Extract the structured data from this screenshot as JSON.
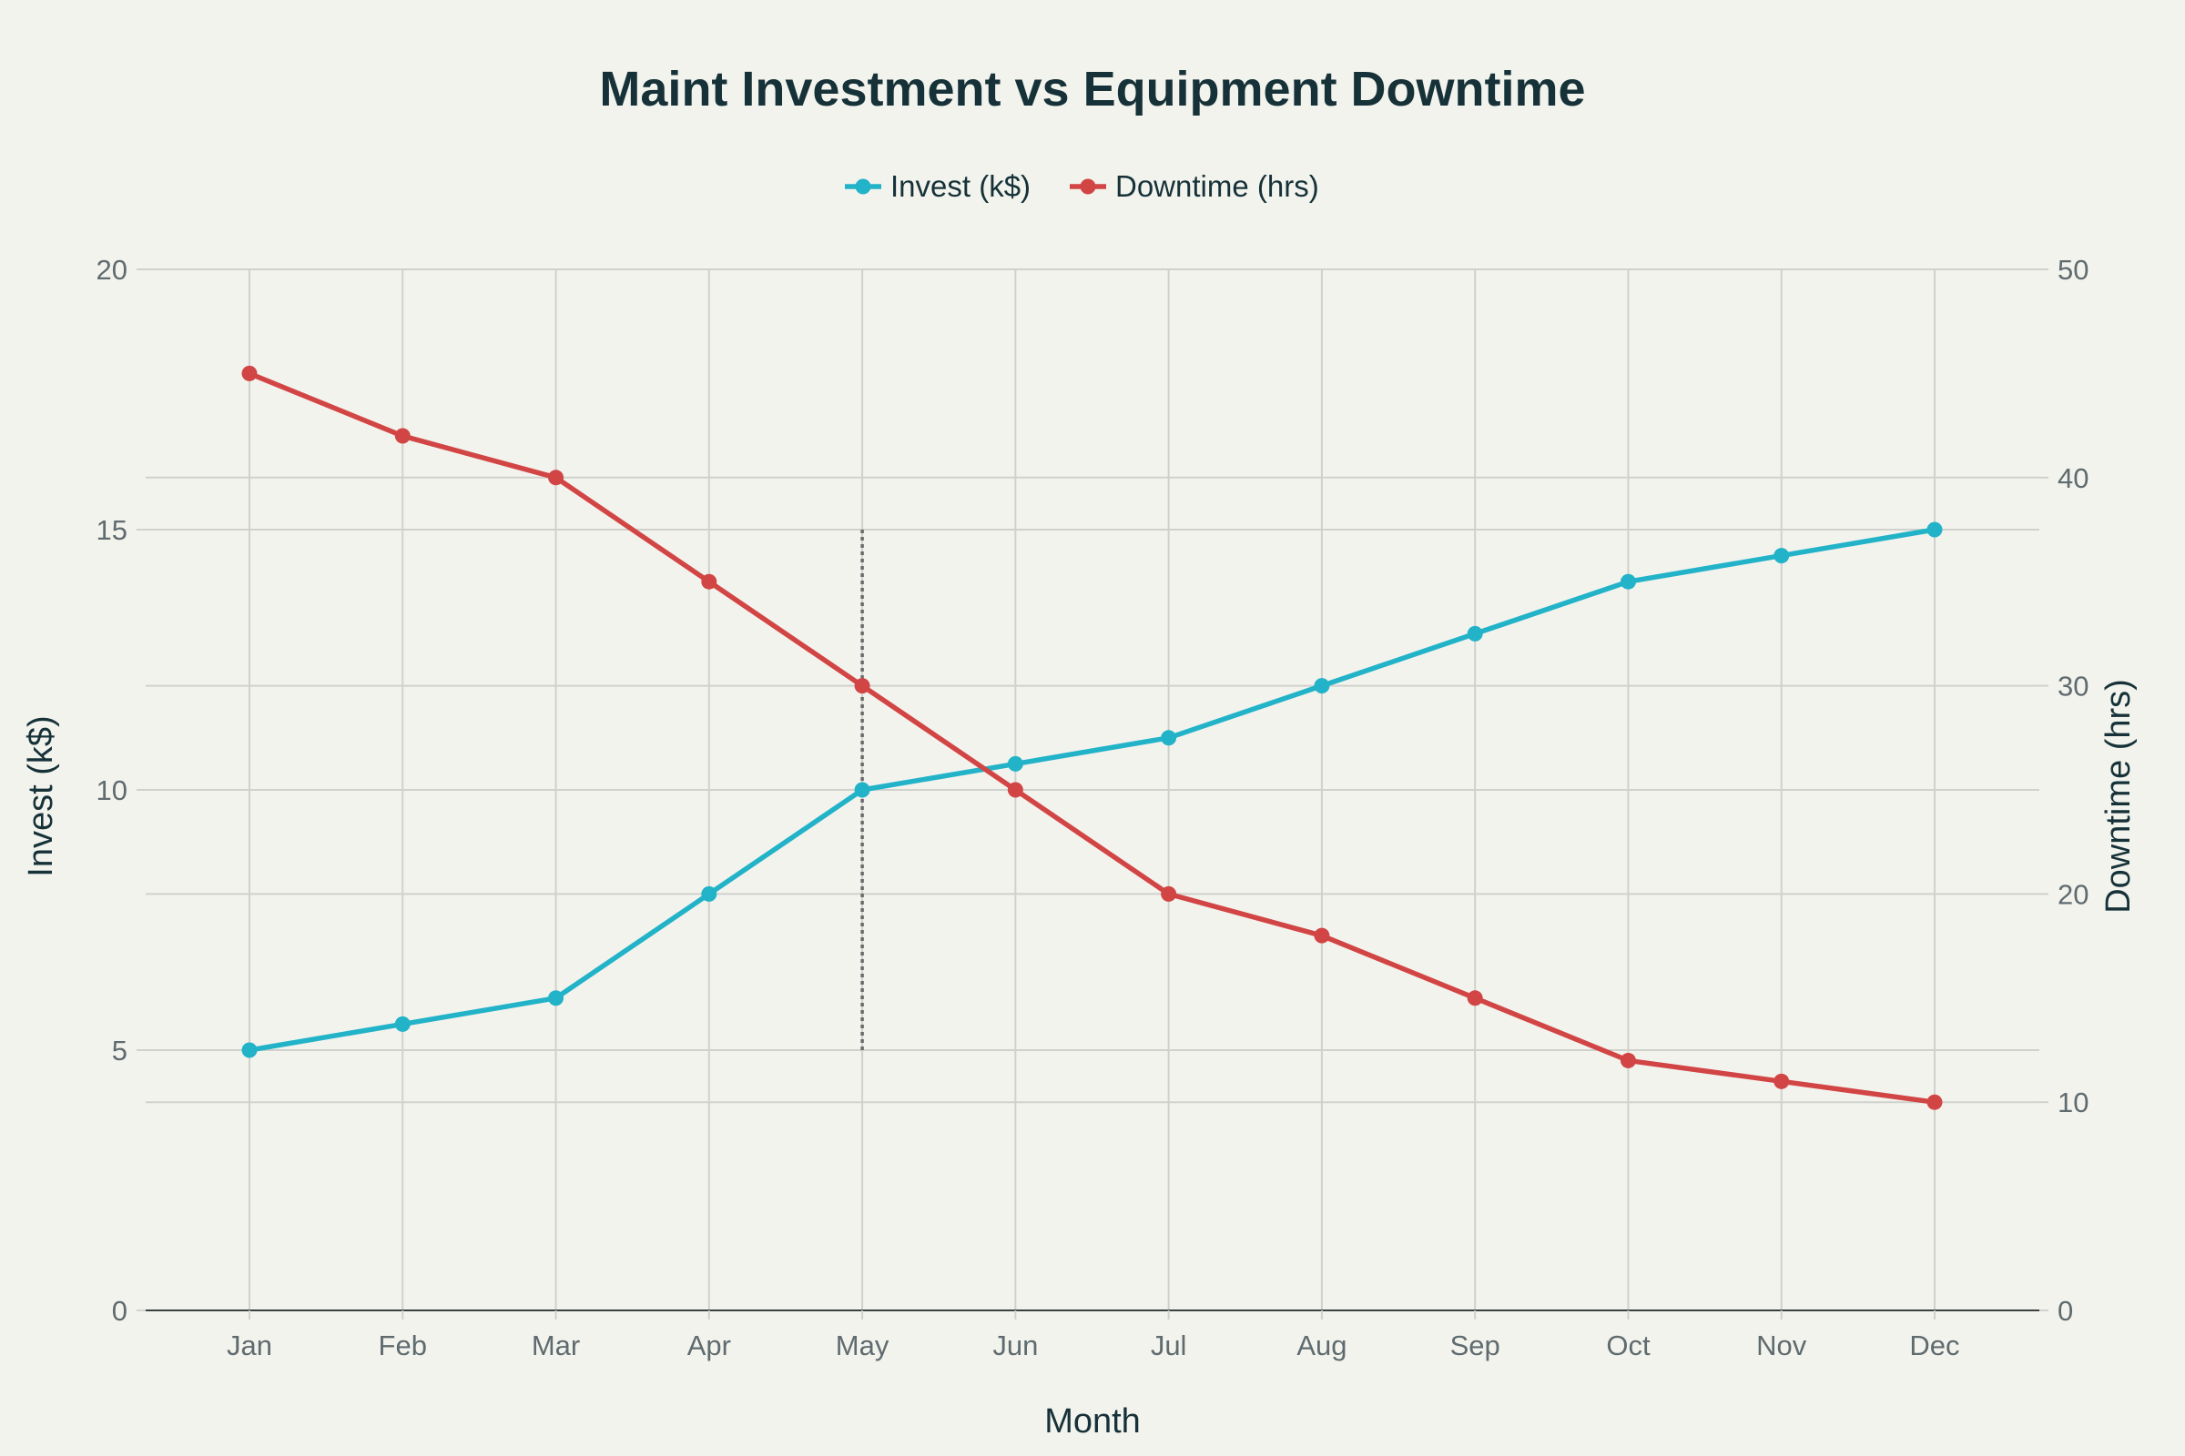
{
  "chart_data": {
    "type": "line",
    "title": "Maint Investment vs Equipment Downtime",
    "xlabel": "Month",
    "ylabel_left": "Invest (k$)",
    "ylabel_right": "Downtime (hrs)",
    "categories": [
      "Jan",
      "Feb",
      "Mar",
      "Apr",
      "May",
      "Jun",
      "Jul",
      "Aug",
      "Sep",
      "Oct",
      "Nov",
      "Dec"
    ],
    "ylim_left": [
      0,
      20
    ],
    "ylim_right": [
      0,
      50
    ],
    "yticks_left": [
      0,
      5,
      10,
      15,
      20
    ],
    "yticks_right": [
      0,
      10,
      20,
      30,
      40,
      50
    ],
    "grid": true,
    "legend_position": "top-center",
    "series": [
      {
        "name": "Invest (k$)",
        "axis": "left",
        "color": "#22b3c8",
        "values": [
          5,
          5.5,
          6,
          8,
          10,
          10.5,
          11,
          12,
          13,
          14,
          14.5,
          15
        ]
      },
      {
        "name": "Downtime (hrs)",
        "axis": "right",
        "color": "#d24545",
        "values": [
          45,
          42,
          40,
          35,
          30,
          25,
          20,
          18,
          15,
          12,
          11,
          10
        ]
      }
    ],
    "annotations": [
      {
        "type": "vertical-dotted-line",
        "x": "May",
        "y_from": 5,
        "y_to": 15,
        "axis": "left",
        "color": "#6b6b6b"
      }
    ]
  }
}
